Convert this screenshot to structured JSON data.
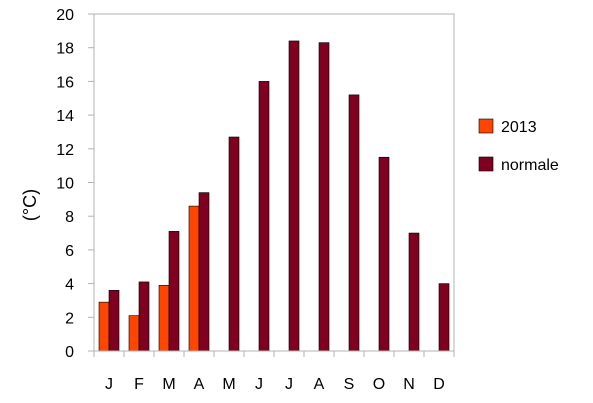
{
  "chart_data": {
    "type": "bar",
    "title": "",
    "xlabel": "",
    "ylabel": "(°C)",
    "categories": [
      "J",
      "F",
      "M",
      "A",
      "M",
      "J",
      "J",
      "A",
      "S",
      "O",
      "N",
      "D"
    ],
    "series": [
      {
        "name": "2013",
        "color": "#ff4500",
        "values": [
          2.9,
          2.1,
          3.9,
          8.6,
          null,
          null,
          null,
          null,
          null,
          null,
          null,
          null
        ]
      },
      {
        "name": "normale",
        "color": "#800020",
        "values": [
          3.6,
          4.1,
          7.1,
          9.4,
          12.7,
          16.0,
          18.4,
          18.3,
          15.2,
          11.5,
          7.0,
          4.0
        ]
      }
    ],
    "ylim": [
      0,
      20
    ],
    "yticks": [
      0,
      2,
      4,
      6,
      8,
      10,
      12,
      14,
      16,
      18,
      20
    ],
    "grid": false,
    "legend": "right"
  }
}
